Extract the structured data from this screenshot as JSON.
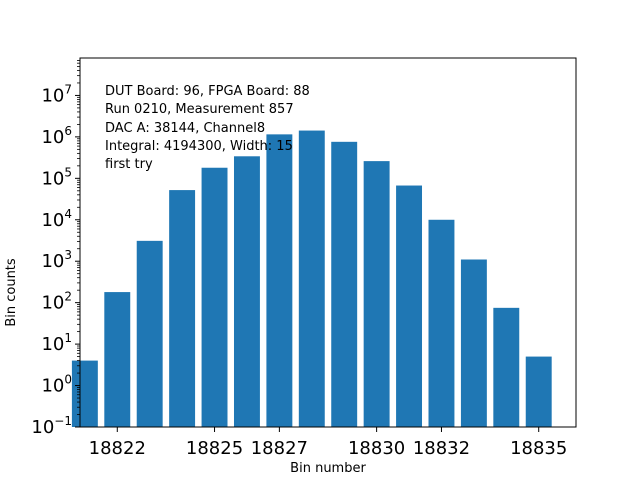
{
  "chart_data": {
    "type": "bar",
    "xlabel": "Bin number",
    "ylabel": "Bin counts",
    "y_scale": "log",
    "ylim": [
      0.1,
      80000000
    ],
    "xlim": [
      18820.85,
      18836.15
    ],
    "bar_color": "#1f77b4",
    "x": [
      18821,
      18822,
      18823,
      18824,
      18825,
      18826,
      18827,
      18828,
      18829,
      18830,
      18831,
      18832,
      18833,
      18834,
      18835,
      18836
    ],
    "values": [
      4,
      180,
      3100,
      52000,
      180000,
      340000,
      1150000,
      1420000,
      760000,
      260000,
      67000,
      10000,
      1100,
      75,
      5,
      0
    ],
    "x_ticks": [
      {
        "value": 18822,
        "label": "18822"
      },
      {
        "value": 18825,
        "label": "18825"
      },
      {
        "value": 18827,
        "label": "18827"
      },
      {
        "value": 18830,
        "label": "18830"
      },
      {
        "value": 18832,
        "label": "18832"
      },
      {
        "value": 18835,
        "label": "18835"
      }
    ],
    "y_ticks": [
      {
        "value": 0.1,
        "base": "10",
        "exp": "−1"
      },
      {
        "value": 1,
        "base": "10",
        "exp": "0"
      },
      {
        "value": 10,
        "base": "10",
        "exp": "1"
      },
      {
        "value": 100,
        "base": "10",
        "exp": "2"
      },
      {
        "value": 1000,
        "base": "10",
        "exp": "3"
      },
      {
        "value": 10000,
        "base": "10",
        "exp": "4"
      },
      {
        "value": 100000,
        "base": "10",
        "exp": "5"
      },
      {
        "value": 1000000,
        "base": "10",
        "exp": "6"
      },
      {
        "value": 10000000,
        "base": "10",
        "exp": "7"
      }
    ],
    "annotation_lines": [
      "DUT Board: 96, FPGA Board: 88",
      "Run 0210, Measurement 857",
      "DAC A: 38144, Channel8",
      "Integral: 4194300, Width: 15",
      "first try"
    ]
  }
}
